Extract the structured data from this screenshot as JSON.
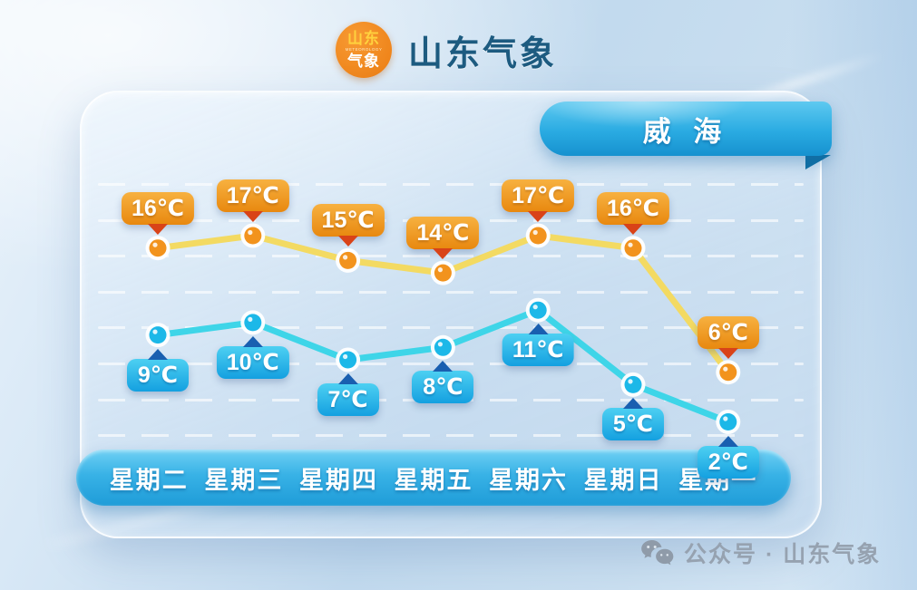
{
  "header": {
    "logo": {
      "top": "山东",
      "middle": "METEOROLOGY",
      "bottom": "气象"
    },
    "title": "山东气象"
  },
  "city_badge": {
    "label": "威 海"
  },
  "watermark": {
    "icon": "wechat-icon",
    "text": "公众号 · 山东气象"
  },
  "chart_data": {
    "type": "line",
    "categories": [
      "星期二",
      "星期三",
      "星期四",
      "星期五",
      "星期六",
      "星期日",
      "星期一"
    ],
    "unit": "℃",
    "series": [
      {
        "name": "high",
        "values": [
          16,
          17,
          15,
          14,
          17,
          16,
          6
        ],
        "line_color": "#f3da62",
        "point_color": "#f2931d",
        "label_bg_top": "#f7b140",
        "label_bg_bottom": "#e8880f",
        "pointer_color": "#d94318"
      },
      {
        "name": "low",
        "values": [
          9,
          10,
          7,
          8,
          11,
          5,
          2
        ],
        "line_color": "#3ed5e8",
        "point_color": "#1cb8e8",
        "label_bg_top": "#4dd0f2",
        "label_bg_bottom": "#14a0e0",
        "pointer_color": "#195fb0"
      }
    ],
    "grid": {
      "horizontal_lines": 8,
      "style": "dashed"
    },
    "legend": "none",
    "ylim_hint": [
      2,
      17
    ]
  }
}
